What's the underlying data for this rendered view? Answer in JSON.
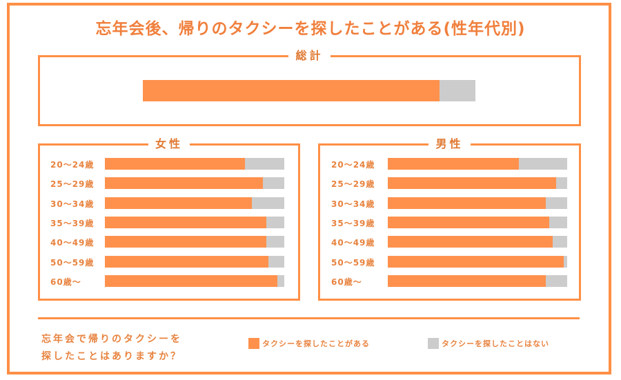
{
  "title": "忘年会後、帰りのタクシーを探したことがある(性年代別)",
  "colors": {
    "yes": "#ff914d",
    "no": "#cccccc",
    "frame": "#ff8f45",
    "text": "#e8833f"
  },
  "question_lines": [
    "忘年会で帰りのタクシーを",
    "探したことはありますか？"
  ],
  "legend": {
    "yes_label": "タクシーを探したことがある",
    "no_label": "タクシーを探したことはない"
  },
  "chart_data": [
    {
      "type": "bar",
      "orientation": "horizontal",
      "stacked": "100%",
      "title": "総計",
      "categories": [
        "総計"
      ],
      "series": [
        {
          "name": "タクシーを探したことがある",
          "values": [
            89.3
          ]
        },
        {
          "name": "タクシーを探したことはない",
          "values": [
            10.7
          ]
        }
      ]
    },
    {
      "type": "bar",
      "orientation": "horizontal",
      "stacked": "100%",
      "title": "女性",
      "categories": [
        "20〜24歳",
        "25〜29歳",
        "30〜34歳",
        "35〜39歳",
        "40〜49歳",
        "50〜59歳",
        "60歳〜"
      ],
      "series": [
        {
          "name": "タクシーを探したことがある",
          "values": [
            78,
            88,
            82,
            90,
            90,
            91,
            96
          ]
        },
        {
          "name": "タクシーを探したことはない",
          "values": [
            22,
            12,
            18,
            10,
            10,
            9,
            4
          ]
        }
      ]
    },
    {
      "type": "bar",
      "orientation": "horizontal",
      "stacked": "100%",
      "title": "男性",
      "categories": [
        "20〜24歳",
        "25〜29歳",
        "30〜34歳",
        "35〜39歳",
        "40〜49歳",
        "50〜59歳",
        "60歳〜"
      ],
      "series": [
        {
          "name": "タクシーを探したことがある",
          "values": [
            73,
            94,
            88,
            90,
            92,
            98,
            88
          ]
        },
        {
          "name": "タクシーを探したことはない",
          "values": [
            27,
            6,
            12,
            10,
            8,
            2,
            12
          ]
        }
      ]
    }
  ]
}
